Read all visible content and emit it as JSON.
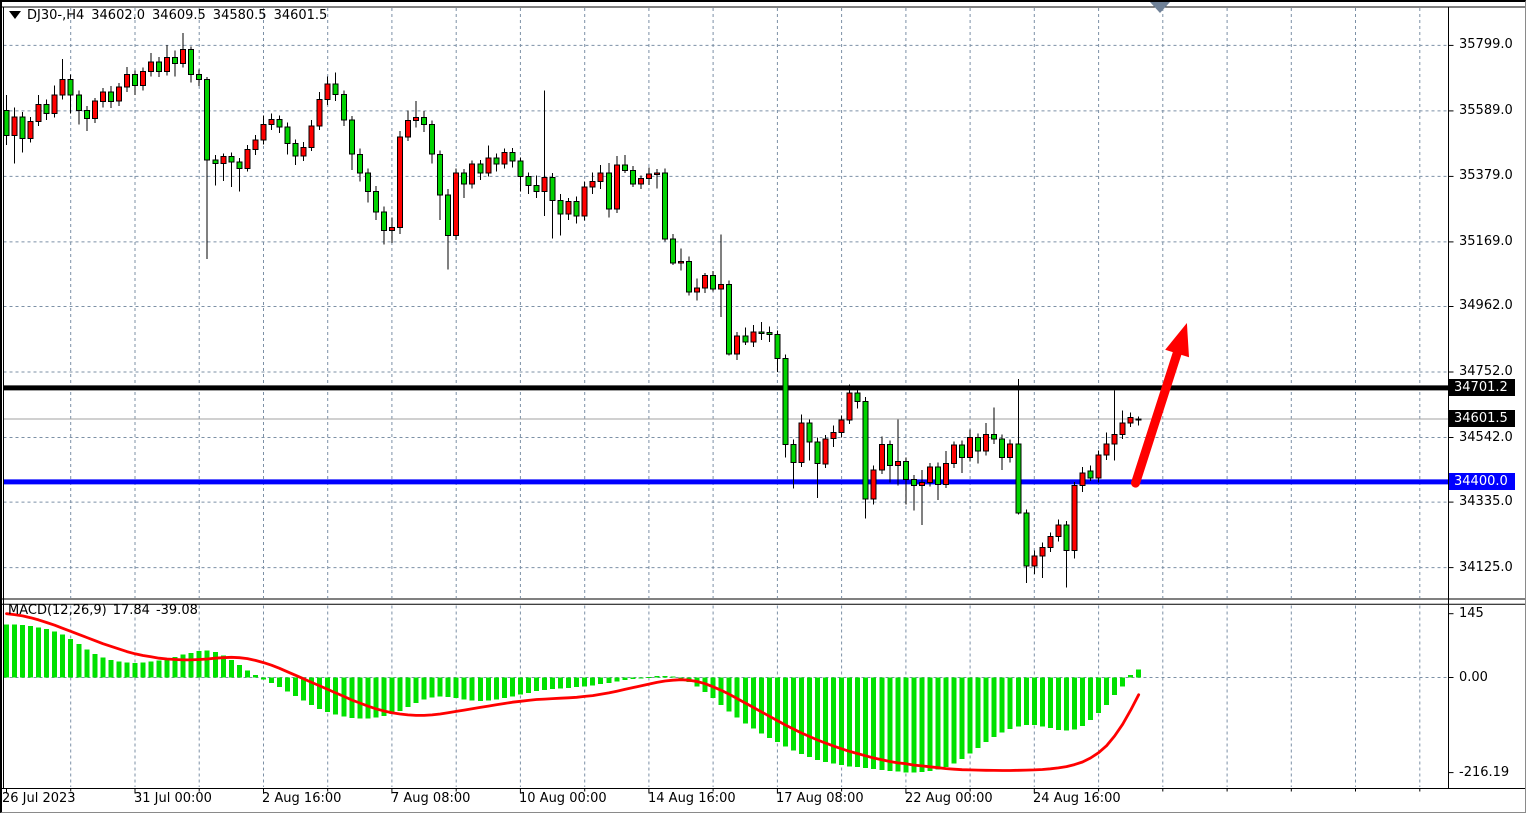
{
  "header": {
    "symbol_period": "DJ30-,H4",
    "open": "34602.0",
    "high": "34609.5",
    "low": "34580.5",
    "close": "34601.5"
  },
  "macd_panel": {
    "title": "MACD(12,26,9)",
    "macd_value": "17.84",
    "signal_value": "-39.08"
  },
  "icons": {
    "symbol_dropdown": "triangle-down-black",
    "auto_scroll_marker": "triangle-down-gray"
  },
  "colors": {
    "background": "#FFFFFF",
    "bull_candle": "#FF0000",
    "bear_candle": "#00D300",
    "wick": "#000000",
    "grid": "#7C90A6",
    "frame": "#000000",
    "macd_bar": "#00E100",
    "macd_signal": "#FF0000",
    "current_price_line": "#A0A0A0",
    "resistance_line": "#000000",
    "support_line": "#0000FF",
    "arrow": "#FF0000",
    "axis_text": "#000000"
  },
  "chart_data": [
    {
      "type": "candlestick",
      "title": "DJ30- H4",
      "grid": true,
      "ylim": [
        34026,
        35922
      ],
      "y_ticks": [
        "35799.0",
        "35589.0",
        "35379.0",
        "35169.0",
        "34962.0",
        "34752.0",
        "34542.0",
        "34335.0",
        "34125.0"
      ],
      "x_ticks": [
        {
          "label": "26 Jul 2023",
          "bar": 0
        },
        {
          "label": "31 Jul 00:00",
          "bar": 16
        },
        {
          "label": "2 Aug 16:00",
          "bar": 32
        },
        {
          "label": "7 Aug 08:00",
          "bar": 48
        },
        {
          "label": "10 Aug 00:00",
          "bar": 64
        },
        {
          "label": "14 Aug 16:00",
          "bar": 80
        },
        {
          "label": "17 Aug 08:00",
          "bar": 96
        },
        {
          "label": "22 Aug 00:00",
          "bar": 112
        },
        {
          "label": "24 Aug 16:00",
          "bar": 128
        }
      ],
      "grid_bar_step": 8,
      "levels": {
        "resistance": {
          "price": 34701.2,
          "label": "34701.2",
          "color": "#000000"
        },
        "support": {
          "price": 34400.0,
          "label": "34400.0",
          "color": "#0000FF"
        },
        "current": {
          "price": 34601.5,
          "label": "34601.5",
          "color": "#000000"
        }
      },
      "annotations": {
        "arrow": {
          "from_bar": 140.6,
          "from_price": 34396,
          "to_bar": 147.0,
          "to_price": 34909,
          "color": "#FF0000"
        }
      },
      "ohlc": [
        [
          35590,
          35640,
          35480,
          35510
        ],
        [
          35510,
          35600,
          35420,
          35570
        ],
        [
          35570,
          35585,
          35455,
          35500
        ],
        [
          35500,
          35570,
          35488,
          35555
        ],
        [
          35555,
          35640,
          35540,
          35610
        ],
        [
          35610,
          35625,
          35560,
          35580
        ],
        [
          35580,
          35670,
          35568,
          35640
        ],
        [
          35640,
          35755,
          35625,
          35690
        ],
        [
          35690,
          35705,
          35580,
          35640
        ],
        [
          35640,
          35655,
          35545,
          35590
        ],
        [
          35590,
          35605,
          35525,
          35565
        ],
        [
          35565,
          35630,
          35550,
          35620
        ],
        [
          35620,
          35662,
          35600,
          35650
        ],
        [
          35650,
          35668,
          35598,
          35620
        ],
        [
          35620,
          35678,
          35605,
          35665
        ],
        [
          35665,
          35730,
          35650,
          35705
        ],
        [
          35705,
          35718,
          35640,
          35670
        ],
        [
          35670,
          35728,
          35655,
          35715
        ],
        [
          35715,
          35775,
          35700,
          35745
        ],
        [
          35745,
          35762,
          35698,
          35715
        ],
        [
          35715,
          35800,
          35702,
          35760
        ],
        [
          35760,
          35782,
          35700,
          35740
        ],
        [
          35740,
          35838,
          35728,
          35785
        ],
        [
          35785,
          35795,
          35680,
          35705
        ],
        [
          35705,
          35722,
          35668,
          35690
        ],
        [
          35690,
          35698,
          35115,
          35432
        ],
        [
          35432,
          35448,
          35350,
          35420
        ],
        [
          35420,
          35452,
          35365,
          35442
        ],
        [
          35442,
          35455,
          35345,
          35425
        ],
        [
          35425,
          35438,
          35330,
          35405
        ],
        [
          35405,
          35480,
          35395,
          35465
        ],
        [
          35465,
          35512,
          35448,
          35495
        ],
        [
          35495,
          35575,
          35482,
          35545
        ],
        [
          35545,
          35580,
          35528,
          35562
        ],
        [
          35562,
          35575,
          35518,
          35538
        ],
        [
          35538,
          35552,
          35450,
          35485
        ],
        [
          35485,
          35498,
          35415,
          35445
        ],
        [
          35445,
          35490,
          35428,
          35472
        ],
        [
          35472,
          35560,
          35460,
          35540
        ],
        [
          35540,
          35650,
          35528,
          35625
        ],
        [
          35625,
          35700,
          35608,
          35675
        ],
        [
          35675,
          35712,
          35620,
          35642
        ],
        [
          35642,
          35655,
          35540,
          35560
        ],
        [
          35560,
          35572,
          35400,
          35450
        ],
        [
          35450,
          35468,
          35362,
          35390
        ],
        [
          35390,
          35405,
          35295,
          35330
        ],
        [
          35330,
          35348,
          35240,
          35265
        ],
        [
          35265,
          35282,
          35160,
          35205
        ],
        [
          35205,
          35248,
          35165,
          35215
        ],
        [
          35215,
          35525,
          35195,
          35505
        ],
        [
          35505,
          35590,
          35492,
          35558
        ],
        [
          35558,
          35620,
          35535,
          35568
        ],
        [
          35568,
          35588,
          35522,
          35545
        ],
        [
          35545,
          35558,
          35420,
          35450
        ],
        [
          35450,
          35462,
          35240,
          35320
        ],
        [
          35320,
          35338,
          35080,
          35190
        ],
        [
          35190,
          35405,
          35175,
          35390
        ],
        [
          35390,
          35402,
          35310,
          35355
        ],
        [
          35355,
          35430,
          35340,
          35418
        ],
        [
          35418,
          35432,
          35368,
          35390
        ],
        [
          35390,
          35478,
          35378,
          35438
        ],
        [
          35438,
          35452,
          35395,
          35418
        ],
        [
          35418,
          35468,
          35405,
          35455
        ],
        [
          35455,
          35470,
          35408,
          35428
        ],
        [
          35428,
          35440,
          35330,
          35378
        ],
        [
          35378,
          35392,
          35322,
          35350
        ],
        [
          35350,
          35382,
          35310,
          35330
        ],
        [
          35330,
          35655,
          35252,
          35375
        ],
        [
          35375,
          35390,
          35180,
          35302
        ],
        [
          35302,
          35322,
          35190,
          35258
        ],
        [
          35258,
          35310,
          35240,
          35298
        ],
        [
          35298,
          35315,
          35228,
          35252
        ],
        [
          35252,
          35362,
          35238,
          35345
        ],
        [
          35345,
          35392,
          35322,
          35362
        ],
        [
          35362,
          35415,
          35338,
          35390
        ],
        [
          35390,
          35422,
          35248,
          35275
        ],
        [
          35275,
          35445,
          35262,
          35415
        ],
        [
          35415,
          35448,
          35390,
          35398
        ],
        [
          35398,
          35412,
          35345,
          35355
        ],
        [
          35355,
          35382,
          35338,
          35372
        ],
        [
          35372,
          35408,
          35352,
          35386
        ],
        [
          35386,
          35402,
          35340,
          35390
        ],
        [
          35390,
          35405,
          35170,
          35178
        ],
        [
          35178,
          35195,
          35095,
          35102
        ],
        [
          35102,
          35148,
          35078,
          35106
        ],
        [
          35106,
          35122,
          34998,
          35008
        ],
        [
          35008,
          35052,
          34982,
          35022
        ],
        [
          35022,
          35070,
          35005,
          35062
        ],
        [
          35062,
          35075,
          35010,
          35018
        ],
        [
          35018,
          35192,
          34928,
          35032
        ],
        [
          35032,
          35045,
          34805,
          34810
        ],
        [
          34810,
          34880,
          34790,
          34868
        ],
        [
          34868,
          34895,
          34838,
          34848
        ],
        [
          34848,
          34902,
          34832,
          34880
        ],
        [
          34880,
          34912,
          34855,
          34878
        ],
        [
          34878,
          34898,
          34848,
          34872
        ],
        [
          34872,
          34885,
          34752,
          34795
        ],
        [
          34795,
          34808,
          34478,
          34520
        ],
        [
          34520,
          34535,
          34378,
          34462
        ],
        [
          34462,
          34615,
          34448,
          34588
        ],
        [
          34588,
          34600,
          34468,
          34528
        ],
        [
          34528,
          34542,
          34348,
          34458
        ],
        [
          34458,
          34550,
          34445,
          34538
        ],
        [
          34538,
          34580,
          34512,
          34558
        ],
        [
          34558,
          34612,
          34542,
          34598
        ],
        [
          34598,
          34712,
          34585,
          34685
        ],
        [
          34685,
          34698,
          34635,
          34658
        ],
        [
          34658,
          34672,
          34282,
          34345
        ],
        [
          34345,
          34452,
          34328,
          34438
        ],
        [
          34438,
          34545,
          34425,
          34520
        ],
        [
          34520,
          34532,
          34398,
          34452
        ],
        [
          34452,
          34600,
          34388,
          34465
        ],
        [
          34465,
          34478,
          34328,
          34408
        ],
        [
          34408,
          34422,
          34308,
          34388
        ],
        [
          34388,
          34438,
          34262,
          34398
        ],
        [
          34398,
          34460,
          34385,
          34448
        ],
        [
          34448,
          34462,
          34342,
          34392
        ],
        [
          34392,
          34498,
          34380,
          34458
        ],
        [
          34458,
          34530,
          34445,
          34518
        ],
        [
          34518,
          34532,
          34428,
          34478
        ],
        [
          34478,
          34568,
          34465,
          34542
        ],
        [
          34542,
          34555,
          34458,
          34498
        ],
        [
          34498,
          34588,
          34485,
          34552
        ],
        [
          34552,
          34638,
          34522,
          34538
        ],
        [
          34538,
          34552,
          34438,
          34478
        ],
        [
          34478,
          34535,
          34462,
          34522
        ],
        [
          34522,
          34730,
          34295,
          34300
        ],
        [
          34300,
          34312,
          34076,
          34130
        ],
        [
          34130,
          34180,
          34105,
          34162
        ],
        [
          34162,
          34205,
          34092,
          34190
        ],
        [
          34190,
          34238,
          34175,
          34225
        ],
        [
          34225,
          34280,
          34208,
          34262
        ],
        [
          34262,
          34275,
          34062,
          34180
        ],
        [
          34180,
          34400,
          34155,
          34388
        ],
        [
          34388,
          34448,
          34368,
          34428
        ],
        [
          34435,
          34452,
          34402,
          34412
        ],
        [
          34412,
          34500,
          34398,
          34486
        ],
        [
          34486,
          34558,
          34470,
          34522
        ],
        [
          34522,
          34692,
          34468,
          34552
        ],
        [
          34552,
          34628,
          34538,
          34588
        ],
        [
          34588,
          34622,
          34575,
          34606
        ],
        [
          34602,
          34609.5,
          34580.5,
          34601.5
        ]
      ]
    },
    {
      "type": "bar+line",
      "title": "MACD(12,26,9)",
      "ylim": [
        -250,
        166
      ],
      "y_ticks": [
        "145",
        "0.00",
        "-216.19"
      ],
      "current": {
        "macd": 17.84,
        "signal": -39.08
      },
      "histogram": [
        120,
        121,
        119,
        117,
        114,
        110,
        105,
        98,
        88,
        76,
        64,
        54,
        46,
        40,
        36,
        34,
        33,
        34,
        36,
        39,
        43,
        47,
        52,
        56,
        60,
        62,
        58,
        50,
        40,
        28,
        16,
        6,
        -4,
        -12,
        -22,
        -32,
        -42,
        -52,
        -62,
        -72,
        -78,
        -84,
        -89,
        -92,
        -93,
        -93,
        -91,
        -88,
        -83,
        -76,
        -67,
        -58,
        -50,
        -45,
        -43,
        -44,
        -47,
        -50,
        -52,
        -53,
        -52,
        -50,
        -47,
        -43,
        -39,
        -35,
        -31,
        -28,
        -26,
        -25,
        -24,
        -22,
        -21,
        -18,
        -15,
        -12,
        -9,
        -6,
        -3,
        -1,
        1,
        3,
        4,
        2,
        -3,
        -10,
        -20,
        -33,
        -47,
        -62,
        -77,
        -91,
        -104,
        -116,
        -127,
        -137,
        -147,
        -157,
        -166,
        -174,
        -181,
        -187,
        -192,
        -196,
        -199,
        -202,
        -204,
        -206,
        -208,
        -210,
        -212,
        -214,
        -215.5,
        -216.19,
        -215,
        -213,
        -209,
        -203,
        -195,
        -185,
        -173,
        -160,
        -147,
        -135,
        -125,
        -117,
        -111,
        -108,
        -108,
        -111,
        -115,
        -119,
        -121,
        -118,
        -110,
        -97,
        -81,
        -62,
        -40,
        -20,
        6,
        17.84
      ],
      "signal": [
        145,
        143,
        140,
        136,
        131,
        125,
        119,
        112,
        105,
        98,
        91,
        84,
        77,
        71,
        65,
        59,
        54,
        50,
        47,
        44,
        42,
        41,
        40,
        40,
        41,
        42,
        44,
        45,
        46,
        45,
        43,
        39,
        34,
        28,
        21,
        13,
        5,
        -3,
        -11,
        -19,
        -27,
        -35,
        -43,
        -51,
        -58,
        -65,
        -71,
        -76,
        -80,
        -83,
        -85,
        -86,
        -86,
        -85,
        -83,
        -80,
        -77,
        -74,
        -71,
        -68,
        -65,
        -62,
        -59,
        -56,
        -54,
        -52,
        -50,
        -49,
        -48,
        -47,
        -46,
        -45,
        -43,
        -41,
        -38,
        -35,
        -31,
        -27,
        -23,
        -19,
        -15,
        -11,
        -8,
        -6,
        -5,
        -6,
        -9,
        -14,
        -21,
        -29,
        -38,
        -48,
        -58,
        -68,
        -78,
        -88,
        -98,
        -108,
        -117,
        -126,
        -134,
        -142,
        -149,
        -156,
        -162,
        -168,
        -173,
        -178,
        -183,
        -187,
        -191,
        -194,
        -196,
        -199,
        -201,
        -203,
        -205,
        -207,
        -208.5,
        -209.5,
        -210,
        -210.5,
        -211,
        -211.2,
        -211.3,
        -211.3,
        -211,
        -210.5,
        -210,
        -209,
        -207.5,
        -205.5,
        -202.5,
        -198,
        -192,
        -183,
        -171,
        -155,
        -133,
        -106,
        -74,
        -39.08
      ]
    }
  ]
}
